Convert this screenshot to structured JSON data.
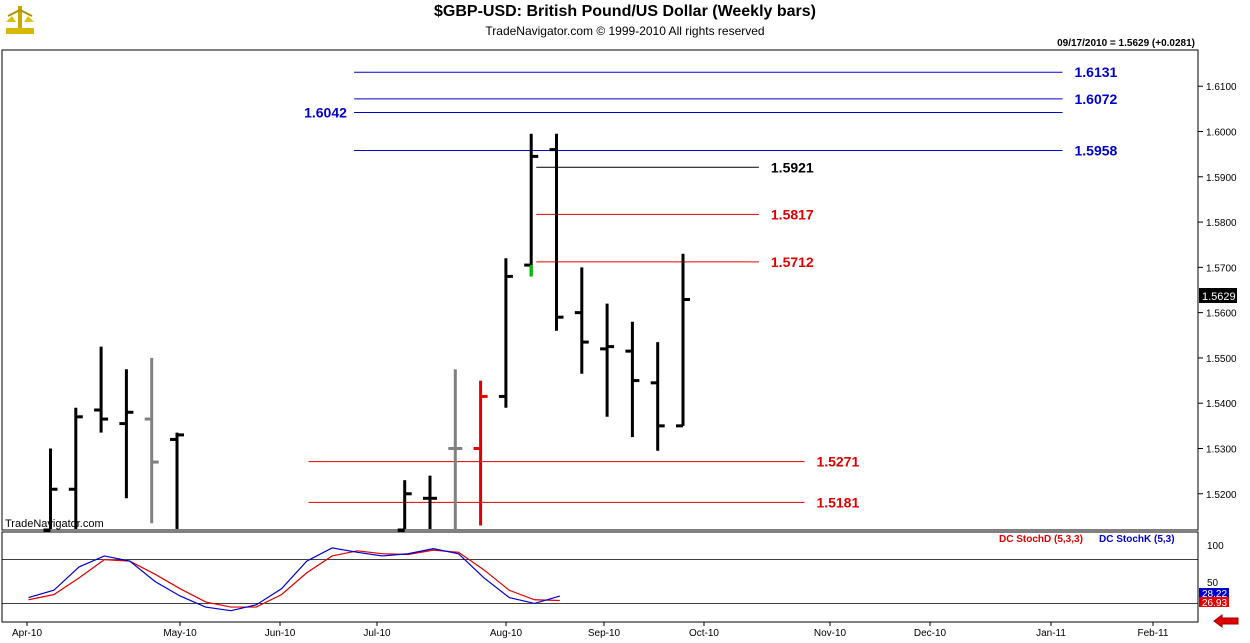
{
  "header": {
    "title": "$GBP-USD:  British Pound/US Dollar  (Weekly bars)",
    "subtitle": "TradeNavigator.com © 1999-2010 All rights reserved",
    "quote": "09/17/2010 = 1.5629 (+0.0281)",
    "watermark": "TradeNavigator.com"
  },
  "indicator": {
    "legend_d": "DC StochD (5,3,3)",
    "legend_k": "DC StochK (5,3)",
    "d_color": "#e00000",
    "k_color": "#0000cc",
    "y_ticks": [
      "100",
      "50"
    ],
    "last_k": "28.22",
    "last_d": "26.93"
  },
  "chart_data": {
    "type": "bar",
    "title": "$GBP-USD:  British Pound/US Dollar  (Weekly bars)",
    "price_axis": {
      "ylim": [
        1.512,
        1.618
      ],
      "ticks": [
        "1.6100",
        "1.6000",
        "1.5900",
        "1.5800",
        "1.5700",
        "1.5600",
        "1.5500",
        "1.5400",
        "1.5300",
        "1.5200"
      ],
      "last_price_label": "1.5629"
    },
    "x_labels": [
      "Apr-10",
      "May-10",
      "Jun-10",
      "Jul-10",
      "Aug-10",
      "Sep-10",
      "Oct-10",
      "Nov-10",
      "Dec-10",
      "Jan-11",
      "Feb-11"
    ],
    "bars": [
      {
        "week": 0,
        "open": 1.512,
        "high": 1.53,
        "low": 1.512,
        "close": 1.521,
        "color": "#000000"
      },
      {
        "week": 1,
        "open": 1.521,
        "high": 1.539,
        "low": 1.512,
        "close": 1.537,
        "color": "#000000"
      },
      {
        "week": 2,
        "open": 1.5385,
        "high": 1.5525,
        "low": 1.5335,
        "close": 1.5365,
        "color": "#000000"
      },
      {
        "week": 3,
        "open": 1.5355,
        "high": 1.5475,
        "low": 1.519,
        "close": 1.538,
        "color": "#000000"
      },
      {
        "week": 4,
        "open": 1.5365,
        "high": 1.55,
        "low": 1.5135,
        "close": 1.527,
        "color": "#808080"
      },
      {
        "week": 5,
        "open": 1.532,
        "high": 1.5335,
        "low": 1.512,
        "close": 1.533,
        "color": "#000000"
      },
      {
        "week": 14,
        "open": 1.512,
        "high": 1.523,
        "low": 1.512,
        "close": 1.52,
        "color": "#000000"
      },
      {
        "week": 15,
        "open": 1.519,
        "high": 1.524,
        "low": 1.512,
        "close": 1.519,
        "color": "#000000"
      },
      {
        "week": 16,
        "open": 1.53,
        "high": 1.5475,
        "low": 1.512,
        "close": 1.53,
        "color": "#808080"
      },
      {
        "week": 17,
        "open": 1.53,
        "high": 1.545,
        "low": 1.513,
        "close": 1.5415,
        "color": "#e00000"
      },
      {
        "week": 18,
        "open": 1.5415,
        "high": 1.572,
        "low": 1.539,
        "close": 1.568,
        "color": "#000000"
      },
      {
        "week": 19,
        "open": 1.5705,
        "high": 1.5995,
        "low": 1.568,
        "close": 1.5945,
        "color": "#000000"
      },
      {
        "week": 20,
        "open": 1.596,
        "high": 1.5995,
        "low": 1.556,
        "close": 1.559,
        "color": "#000000"
      },
      {
        "week": 21,
        "open": 1.56,
        "high": 1.57,
        "low": 1.5465,
        "close": 1.5535,
        "color": "#000000"
      },
      {
        "week": 22,
        "open": 1.552,
        "high": 1.562,
        "low": 1.537,
        "close": 1.5525,
        "color": "#000000"
      },
      {
        "week": 23,
        "open": 1.5515,
        "high": 1.558,
        "low": 1.5325,
        "close": 1.545,
        "color": "#000000"
      },
      {
        "week": 24,
        "open": 1.5445,
        "high": 1.5535,
        "low": 1.5295,
        "close": 1.535,
        "color": "#000000"
      },
      {
        "week": 25,
        "open": 1.535,
        "high": 1.573,
        "low": 1.535,
        "close": 1.5629,
        "color": "#000000"
      }
    ],
    "levels": [
      {
        "label": "1.6131",
        "value": 1.6131,
        "color": "#0000cc",
        "from_week": 12,
        "to_week": 40,
        "label_side": "right"
      },
      {
        "label": "1.6072",
        "value": 1.6072,
        "color": "#0000cc",
        "from_week": 12,
        "to_week": 40,
        "label_side": "right"
      },
      {
        "label": "1.6042",
        "value": 1.6042,
        "color": "#0000cc",
        "from_week": 12,
        "to_week": 40,
        "label_side": "left"
      },
      {
        "label": "1.5958",
        "value": 1.5958,
        "color": "#0000cc",
        "from_week": 12,
        "to_week": 40,
        "label_side": "right"
      },
      {
        "label": "1.5921",
        "value": 1.5921,
        "color": "#000000",
        "from_week": 19.2,
        "to_week": 28,
        "label_side": "right"
      },
      {
        "label": "1.5817",
        "value": 1.5817,
        "color": "#e00000",
        "from_week": 19.2,
        "to_week": 28,
        "label_side": "right"
      },
      {
        "label": "1.5712",
        "value": 1.5712,
        "color": "#e00000",
        "from_week": 19.2,
        "to_week": 28,
        "label_side": "right"
      },
      {
        "label": "1.5271",
        "value": 1.5271,
        "color": "#e00000",
        "from_week": 10.2,
        "to_week": 29.8,
        "label_side": "right"
      },
      {
        "label": "1.5181",
        "value": 1.5181,
        "color": "#e00000",
        "from_week": 10.2,
        "to_week": 29.8,
        "label_side": "right"
      }
    ],
    "stoch_k": [
      28,
      38,
      70,
      85,
      78,
      50,
      30,
      15,
      10,
      18,
      40,
      78,
      96,
      90,
      85,
      88,
      95,
      88,
      55,
      28,
      20,
      30
    ],
    "stoch_d": [
      25,
      32,
      55,
      80,
      78,
      60,
      40,
      22,
      15,
      15,
      32,
      62,
      85,
      92,
      88,
      87,
      93,
      90,
      66,
      38,
      25,
      24
    ],
    "stoch_x_start_week": 0,
    "stoch_ylim": [
      0,
      100
    ],
    "stoch_ref_lines": [
      80,
      20
    ]
  }
}
